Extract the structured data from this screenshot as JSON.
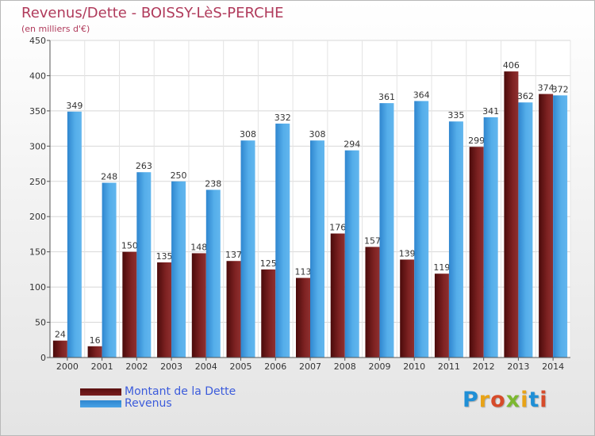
{
  "chart_data": {
    "type": "bar",
    "title": "Revenus/Dette - BOISSY-LèS-PERCHE",
    "subtitle": "(en milliers d'€)",
    "categories": [
      "2000",
      "2001",
      "2002",
      "2003",
      "2004",
      "2005",
      "2006",
      "2007",
      "2008",
      "2009",
      "2010",
      "2011",
      "2012",
      "2013",
      "2014"
    ],
    "series": [
      {
        "name": "Montant de la Dette",
        "color": "#7a1e1e",
        "values": [
          24,
          16,
          150,
          135,
          148,
          137,
          125,
          113,
          176,
          157,
          139,
          119,
          299,
          406,
          374
        ]
      },
      {
        "name": "Revenus",
        "color": "#4aa3e6",
        "values": [
          349,
          248,
          263,
          250,
          238,
          308,
          332,
          308,
          294,
          361,
          364,
          335,
          341,
          362,
          372
        ]
      }
    ],
    "ylim": [
      0,
      450
    ],
    "yticks": [
      0,
      50,
      100,
      150,
      200,
      250,
      300,
      350,
      400,
      450
    ],
    "grid": true,
    "legend": "bottom-left"
  },
  "logo": {
    "letters": [
      {
        "ch": "P",
        "color": "#1f8fd6"
      },
      {
        "ch": "r",
        "color": "#e8a317"
      },
      {
        "ch": "o",
        "color": "#d64b2a"
      },
      {
        "ch": "x",
        "color": "#7cb82f"
      },
      {
        "ch": "i",
        "color": "#e8a317"
      },
      {
        "ch": "t",
        "color": "#1f8fd6"
      },
      {
        "ch": "i",
        "color": "#d64b2a"
      }
    ]
  }
}
